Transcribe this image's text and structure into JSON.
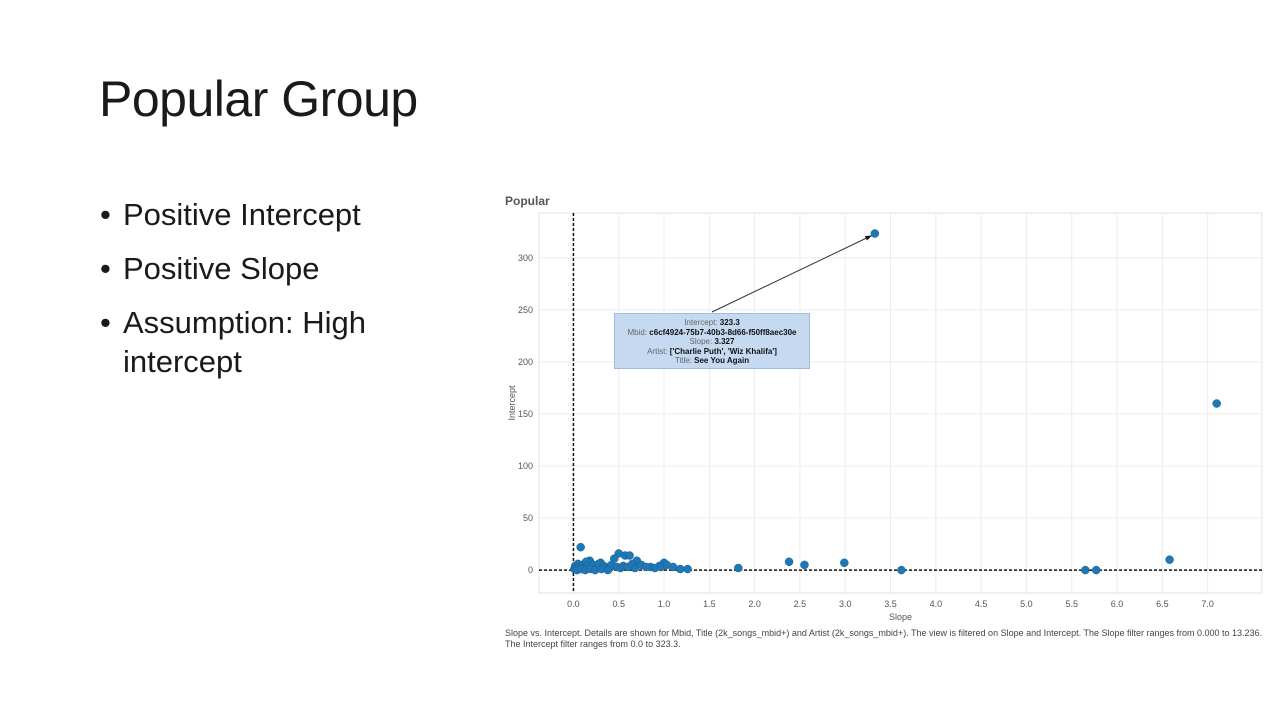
{
  "slide": {
    "title": "Popular Group",
    "bullets": [
      "Positive Intercept",
      "Positive Slope",
      "Assumption:  High intercept"
    ]
  },
  "tooltip": {
    "intercept_label": "Intercept:",
    "intercept_value": "323.3",
    "mbid_label": "Mbid:",
    "mbid_value": "c6cf4924-75b7-40b3-8d66-f50ff8aec30e",
    "slope_label": "Slope:",
    "slope_value": "3.327",
    "artist_label": "Artist:",
    "artist_value": "['Charlie Puth', 'Wiz Khalifa']",
    "title_label": "Title:",
    "title_value": "See You Again"
  },
  "caption": "Slope vs. Intercept.  Details are shown for Mbid, Title (2k_songs_mbid+) and Artist (2k_songs_mbid+). The view is filtered on Slope and Intercept. The Slope filter ranges from 0.000 to 13.236. The Intercept filter ranges from 0.0 to 323.3.",
  "colors": {
    "point": "#1f77b4",
    "tooltip_bg": "#c5d9f1",
    "grid": "#ececec"
  },
  "chart_data": {
    "type": "scatter",
    "title": "Popular",
    "xlabel": "Slope",
    "ylabel": "Intercept",
    "xlim": [
      -0.38,
      7.6
    ],
    "ylim": [
      -22,
      343
    ],
    "xticks": [
      0.0,
      0.5,
      1.0,
      1.5,
      2.0,
      2.5,
      3.0,
      3.5,
      4.0,
      4.5,
      5.0,
      5.5,
      6.0,
      6.5,
      7.0
    ],
    "xtick_labels": [
      "0.0",
      "0.5",
      "1.0",
      "1.5",
      "2.0",
      "2.5",
      "3.0",
      "3.5",
      "4.0",
      "4.5",
      "5.0",
      "5.5",
      "6.0",
      "6.5",
      "7.0"
    ],
    "yticks": [
      0,
      50,
      100,
      150,
      200,
      250,
      300
    ],
    "ytick_labels": [
      "0",
      "50",
      "100",
      "150",
      "200",
      "250",
      "300"
    ],
    "grid": true,
    "reference_lines": {
      "x": 0,
      "y": 0
    },
    "x": [
      3.327,
      7.1,
      6.58,
      0.08,
      0.5,
      0.57,
      0.62,
      0.18,
      0.3,
      0.45,
      0.7,
      0.85,
      0.95,
      1.0,
      1.1,
      1.18,
      1.26,
      1.82,
      2.38,
      2.55,
      2.99,
      3.62,
      5.65,
      5.77,
      0.01,
      0.02,
      0.03,
      0.05,
      0.06,
      0.1,
      0.12,
      0.14,
      0.16,
      0.2,
      0.22,
      0.25,
      0.28,
      0.33,
      0.36,
      0.4,
      0.42,
      0.48,
      0.52,
      0.55,
      0.6,
      0.65,
      0.68,
      0.75,
      0.8,
      0.9,
      0.97,
      1.03,
      0.04,
      0.09,
      0.13,
      0.19,
      0.24,
      0.31,
      0.38
    ],
    "y": [
      323.3,
      160,
      10,
      22,
      16,
      14,
      14,
      9,
      7,
      11,
      9,
      3,
      4,
      7,
      3,
      1,
      1,
      2,
      8,
      5,
      7,
      0,
      0,
      0,
      1,
      4,
      2,
      6,
      3,
      5,
      2,
      8,
      4,
      3,
      5,
      2,
      6,
      4,
      3,
      2,
      5,
      3,
      2,
      4,
      3,
      6,
      2,
      5,
      3,
      2,
      3,
      5,
      0,
      1,
      0,
      1,
      0,
      1,
      0
    ]
  }
}
